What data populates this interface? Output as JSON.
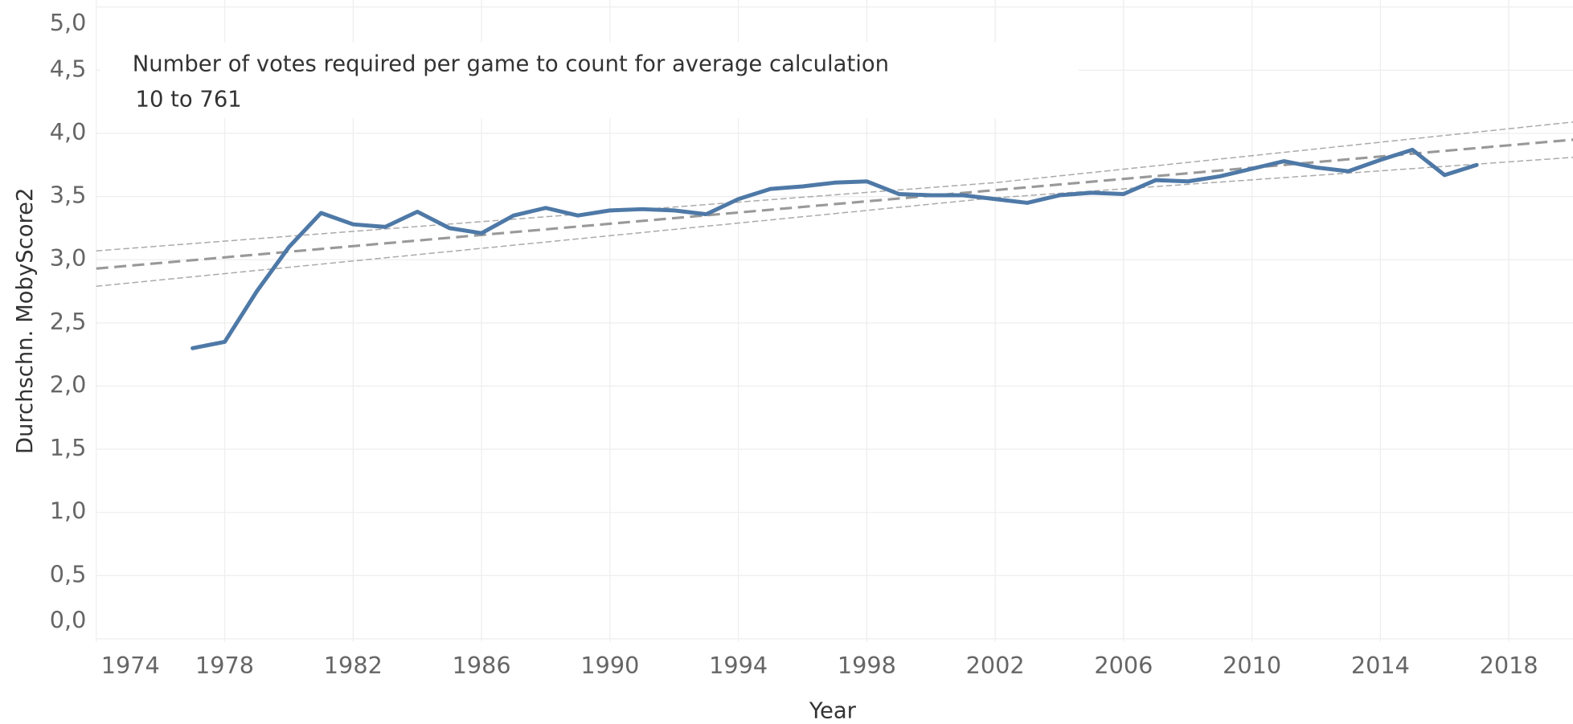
{
  "chart_data": {
    "type": "line",
    "title": "Number of votes required per game to count for average calculation",
    "subtitle": "10 to 761",
    "x_label": "Year",
    "y_label": "Durchschn. MobyScore2",
    "x": [
      1977,
      1978,
      1979,
      1980,
      1981,
      1982,
      1983,
      1984,
      1985,
      1986,
      1987,
      1988,
      1989,
      1990,
      1991,
      1992,
      1993,
      1994,
      1995,
      1996,
      1997,
      1998,
      1999,
      2000,
      2001,
      2002,
      2003,
      2004,
      2005,
      2006,
      2007,
      2008,
      2009,
      2010,
      2011,
      2012,
      2013,
      2014,
      2015,
      2016,
      2017
    ],
    "series": [
      {
        "color": "#4e79a7",
        "values": [
          2.3,
          2.35,
          2.75,
          3.1,
          3.37,
          3.28,
          3.26,
          3.38,
          3.25,
          3.21,
          3.35,
          3.41,
          3.35,
          3.39,
          3.4,
          3.39,
          3.36,
          3.48,
          3.56,
          3.58,
          3.61,
          3.62,
          3.52,
          3.51,
          3.51,
          3.48,
          3.45,
          3.51,
          3.53,
          3.52,
          3.63,
          3.62,
          3.66,
          3.72,
          3.78,
          3.73,
          3.7,
          3.79,
          3.87,
          3.67,
          3.75
        ]
      }
    ],
    "trend_lines": [
      {
        "x": [
          1974,
          2020
        ],
        "values": [
          2.93,
          3.95
        ],
        "color": "#999999",
        "width": 2.5
      },
      {
        "x": [
          1974,
          2002,
          2020
        ],
        "values": [
          3.07,
          3.61,
          4.09
        ],
        "color": "#aaaaaa",
        "width": 1.2
      },
      {
        "x": [
          1974,
          2002,
          2020
        ],
        "values": [
          2.79,
          3.49,
          3.81
        ],
        "color": "#aaaaaa",
        "width": 1.2
      }
    ],
    "xlim": [
      1974,
      2020
    ],
    "xticks": [
      1974,
      1978,
      1982,
      1986,
      1990,
      1994,
      1998,
      2002,
      2006,
      2010,
      2014,
      2018
    ],
    "ylim": [
      0,
      5
    ],
    "yticks": [
      {
        "value": 0,
        "label": "0,0"
      },
      {
        "value": 0.5,
        "label": "0,5"
      },
      {
        "value": 1,
        "label": "1,0"
      },
      {
        "value": 1.5,
        "label": "1,5"
      },
      {
        "value": 2,
        "label": "2,0"
      },
      {
        "value": 2.5,
        "label": "2,5"
      },
      {
        "value": 3,
        "label": "3,0"
      },
      {
        "value": 3.5,
        "label": "3,5"
      },
      {
        "value": 4,
        "label": "4,0"
      },
      {
        "value": 4.5,
        "label": "4,5"
      },
      {
        "value": 5,
        "label": "5,0"
      }
    ],
    "grid": true
  }
}
